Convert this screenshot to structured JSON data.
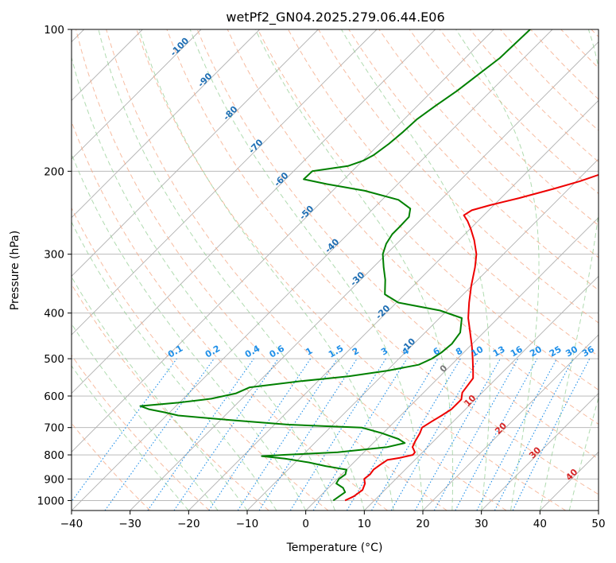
{
  "chart_data": {
    "type": "line",
    "subtype": "skew-t log-p diagram",
    "title": "wetPf2_GN04.2025.279.06.44.E06",
    "xlabel": "Temperature (°C)",
    "ylabel": "Pressure (hPa)",
    "xlim": [
      -40,
      50
    ],
    "ylim": [
      1050,
      100
    ],
    "x_ticks": [
      -40,
      -30,
      -20,
      -10,
      0,
      10,
      20,
      30,
      40,
      50
    ],
    "y_ticks": [
      100,
      200,
      300,
      400,
      500,
      600,
      700,
      800,
      900,
      1000
    ],
    "grid": true,
    "series": [
      {
        "name": "temperature",
        "color": "#ee0000",
        "points": [
          [
            1000,
            5.0
          ],
          [
            980,
            5.8
          ],
          [
            950,
            6.2
          ],
          [
            920,
            5.5
          ],
          [
            900,
            4.6
          ],
          [
            880,
            4.8
          ],
          [
            860,
            4.6
          ],
          [
            840,
            4.9
          ],
          [
            820,
            5.3
          ],
          [
            812,
            7.0
          ],
          [
            800,
            8.8
          ],
          [
            790,
            8.7
          ],
          [
            770,
            7.4
          ],
          [
            750,
            6.9
          ],
          [
            720,
            6.3
          ],
          [
            700,
            5.7
          ],
          [
            680,
            6.3
          ],
          [
            660,
            7.0
          ],
          [
            640,
            7.6
          ],
          [
            610,
            7.6
          ],
          [
            590,
            6.6
          ],
          [
            570,
            6.3
          ],
          [
            550,
            6.0
          ],
          [
            530,
            4.7
          ],
          [
            500,
            2.6
          ],
          [
            470,
            0.3
          ],
          [
            440,
            -2.3
          ],
          [
            410,
            -5.1
          ],
          [
            380,
            -7.6
          ],
          [
            350,
            -10.1
          ],
          [
            320,
            -12.6
          ],
          [
            300,
            -14.6
          ],
          [
            280,
            -17.4
          ],
          [
            265,
            -19.9
          ],
          [
            255,
            -21.8
          ],
          [
            248,
            -23.4
          ],
          [
            242,
            -22.9
          ],
          [
            236,
            -20.6
          ],
          [
            228,
            -16.9
          ],
          [
            218,
            -12.6
          ],
          [
            210,
            -9.4
          ],
          [
            200,
            -6.1
          ],
          [
            190,
            -3.4
          ],
          [
            180,
            -1.3
          ],
          [
            170,
            -1.1
          ],
          [
            160,
            0.6
          ],
          [
            150,
            2.5
          ],
          [
            140,
            4.6
          ],
          [
            130,
            6.8
          ],
          [
            120,
            8.9
          ],
          [
            110,
            11.4
          ],
          [
            100,
            13.9
          ]
        ]
      },
      {
        "name": "dewpoint",
        "color": "#008000",
        "points": [
          [
            1000,
            3.0
          ],
          [
            980,
            3.3
          ],
          [
            960,
            3.6
          ],
          [
            940,
            2.5
          ],
          [
            920,
            0.6
          ],
          [
            900,
            0.3
          ],
          [
            880,
            0.6
          ],
          [
            860,
            0.0
          ],
          [
            845,
            -4.2
          ],
          [
            830,
            -7.7
          ],
          [
            815,
            -12.4
          ],
          [
            805,
            -16.8
          ],
          [
            800,
            -13.2
          ],
          [
            790,
            -4.5
          ],
          [
            770,
            3.1
          ],
          [
            755,
            5.4
          ],
          [
            740,
            3.6
          ],
          [
            720,
            -0.1
          ],
          [
            700,
            -4.6
          ],
          [
            690,
            -17.6
          ],
          [
            675,
            -28.3
          ],
          [
            660,
            -38.0
          ],
          [
            650,
            -40.8
          ],
          [
            640,
            -44.1
          ],
          [
            630,
            -46.1
          ],
          [
            620,
            -40.2
          ],
          [
            608,
            -35.2
          ],
          [
            592,
            -31.9
          ],
          [
            575,
            -30.6
          ],
          [
            558,
            -22.9
          ],
          [
            545,
            -15.6
          ],
          [
            530,
            -9.9
          ],
          [
            515,
            -5.6
          ],
          [
            500,
            -4.4
          ],
          [
            485,
            -3.8
          ],
          [
            465,
            -3.5
          ],
          [
            440,
            -4.0
          ],
          [
            410,
            -6.2
          ],
          [
            395,
            -11.2
          ],
          [
            380,
            -19.7
          ],
          [
            365,
            -23.4
          ],
          [
            340,
            -25.8
          ],
          [
            320,
            -28.2
          ],
          [
            300,
            -30.6
          ],
          [
            285,
            -31.8
          ],
          [
            272,
            -32.4
          ],
          [
            262,
            -32.4
          ],
          [
            250,
            -32.5
          ],
          [
            240,
            -33.7
          ],
          [
            230,
            -37.2
          ],
          [
            220,
            -44.5
          ],
          [
            213,
            -52.1
          ],
          [
            208,
            -56.9
          ],
          [
            200,
            -56.8
          ],
          [
            195,
            -51.6
          ],
          [
            190,
            -49.9
          ],
          [
            185,
            -49.1
          ],
          [
            175,
            -48.4
          ],
          [
            165,
            -48.0
          ],
          [
            155,
            -47.8
          ],
          [
            145,
            -46.9
          ],
          [
            135,
            -45.8
          ],
          [
            125,
            -45.0
          ],
          [
            115,
            -44.1
          ],
          [
            100,
            -43.8
          ]
        ]
      }
    ],
    "dry_adiabat_labels": [
      -100,
      -90,
      -80,
      -70,
      -60,
      -50,
      -40,
      -30,
      -20,
      -10,
      0,
      10,
      20,
      30,
      40
    ],
    "mixing_ratio_labels": [
      "0.1",
      "0.2",
      "0.4",
      "0.6",
      "1",
      "1.5",
      "2",
      "3",
      "4",
      "6",
      "8",
      "10",
      "13",
      "16",
      "20",
      "25",
      "30",
      "36"
    ],
    "colors": {
      "isotherm": "#b0b0b0",
      "dry_adiabat": "#f4a582",
      "moist_adiabat": "#8fcc8f",
      "mixing_ratio": "#1f8fe8",
      "isohume_dashed": "#d8c4a8",
      "dry_adiabat_label_cold": "#1f6fb4",
      "dry_adiabat_label_warm": "#d62728",
      "zero_label": "#777777"
    }
  }
}
